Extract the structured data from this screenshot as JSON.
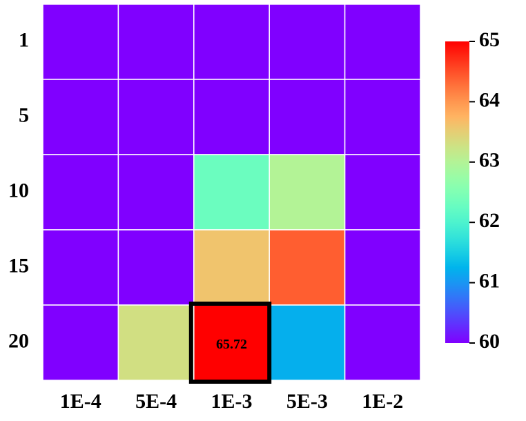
{
  "chart_data": {
    "type": "heatmap",
    "x_categories": [
      "1E-4",
      "5E-4",
      "1E-3",
      "5E-3",
      "1E-2"
    ],
    "y_categories": [
      "1",
      "5",
      "10",
      "15",
      "20"
    ],
    "values": [
      [
        60,
        60,
        60,
        60,
        60
      ],
      [
        60,
        60,
        60,
        60,
        60
      ],
      [
        60,
        60,
        62.3,
        63.0,
        60
      ],
      [
        60,
        60,
        63.6,
        64.4,
        60
      ],
      [
        60,
        63.3,
        65.72,
        61.2,
        60
      ]
    ],
    "colormap": "rainbow",
    "zlim": [
      60,
      65
    ],
    "zticks": [
      60,
      61,
      62,
      63,
      64,
      65
    ],
    "highlight": [
      4,
      2
    ]
  }
}
